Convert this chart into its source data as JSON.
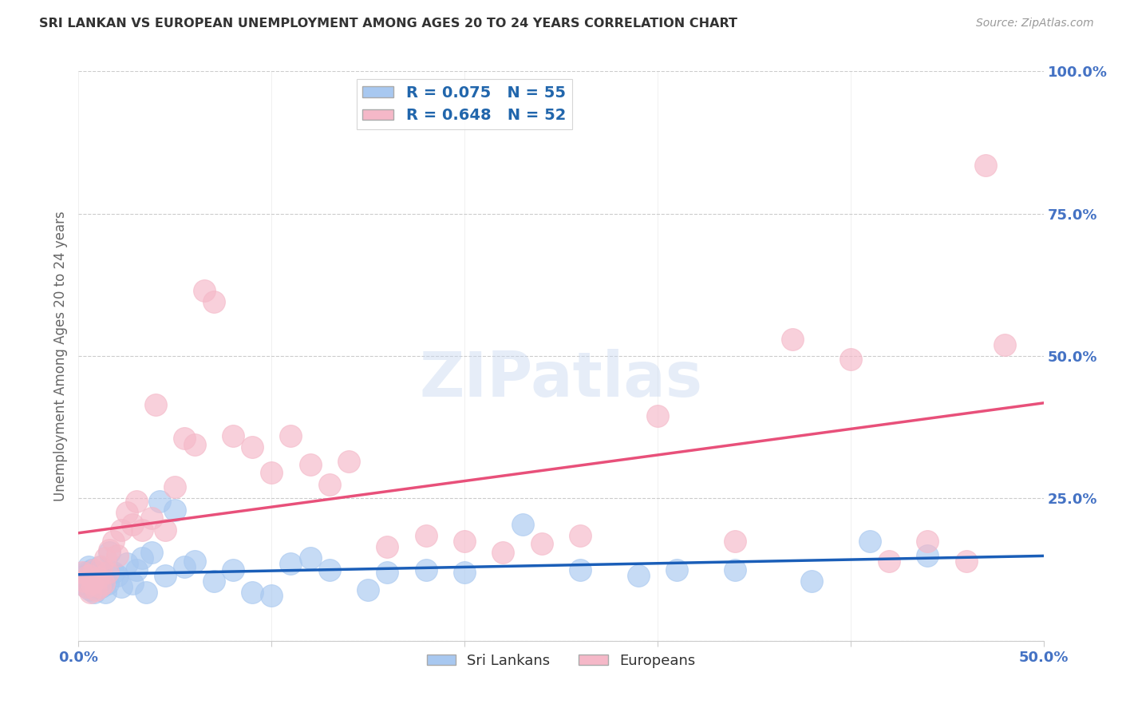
{
  "title": "SRI LANKAN VS EUROPEAN UNEMPLOYMENT AMONG AGES 20 TO 24 YEARS CORRELATION CHART",
  "source": "Source: ZipAtlas.com",
  "ylabel": "Unemployment Among Ages 20 to 24 years",
  "xlim": [
    0.0,
    0.5
  ],
  "ylim": [
    0.0,
    1.0
  ],
  "xticks": [
    0.0,
    0.1,
    0.2,
    0.3,
    0.4,
    0.5
  ],
  "yticks": [
    0.0,
    0.25,
    0.5,
    0.75,
    1.0
  ],
  "xticklabels": [
    "0.0%",
    "",
    "",
    "",
    "",
    "50.0%"
  ],
  "yticklabels": [
    "",
    "25.0%",
    "50.0%",
    "75.0%",
    "100.0%"
  ],
  "sri_lankan_color": "#a8c8f0",
  "european_color": "#f5b8c8",
  "sri_lankan_line_color": "#1a5eb8",
  "european_line_color": "#e8507a",
  "background_color": "#ffffff",
  "grid_color": "#cccccc",
  "title_color": "#333333",
  "tick_label_color": "#4472c4",
  "watermark_text": "ZIPatlas",
  "sri_lankans_x": [
    0.002,
    0.003,
    0.004,
    0.004,
    0.005,
    0.005,
    0.006,
    0.006,
    0.007,
    0.007,
    0.008,
    0.008,
    0.009,
    0.009,
    0.01,
    0.01,
    0.011,
    0.012,
    0.013,
    0.014,
    0.015,
    0.016,
    0.018,
    0.02,
    0.022,
    0.025,
    0.028,
    0.03,
    0.033,
    0.035,
    0.038,
    0.042,
    0.045,
    0.05,
    0.055,
    0.06,
    0.07,
    0.08,
    0.09,
    0.1,
    0.11,
    0.12,
    0.13,
    0.15,
    0.16,
    0.18,
    0.2,
    0.23,
    0.26,
    0.29,
    0.31,
    0.34,
    0.38,
    0.41,
    0.44
  ],
  "sri_lankans_y": [
    0.1,
    0.115,
    0.095,
    0.12,
    0.105,
    0.13,
    0.09,
    0.115,
    0.1,
    0.125,
    0.085,
    0.11,
    0.095,
    0.12,
    0.1,
    0.115,
    0.13,
    0.095,
    0.11,
    0.085,
    0.1,
    0.155,
    0.12,
    0.115,
    0.095,
    0.135,
    0.1,
    0.125,
    0.145,
    0.085,
    0.155,
    0.245,
    0.115,
    0.23,
    0.13,
    0.14,
    0.105,
    0.125,
    0.085,
    0.08,
    0.135,
    0.145,
    0.125,
    0.09,
    0.12,
    0.125,
    0.12,
    0.205,
    0.125,
    0.115,
    0.125,
    0.125,
    0.105,
    0.175,
    0.15
  ],
  "europeans_x": [
    0.002,
    0.003,
    0.004,
    0.005,
    0.006,
    0.007,
    0.008,
    0.009,
    0.01,
    0.011,
    0.012,
    0.013,
    0.014,
    0.015,
    0.016,
    0.018,
    0.02,
    0.022,
    0.025,
    0.028,
    0.03,
    0.033,
    0.038,
    0.04,
    0.045,
    0.05,
    0.055,
    0.06,
    0.065,
    0.07,
    0.08,
    0.09,
    0.1,
    0.11,
    0.12,
    0.13,
    0.14,
    0.16,
    0.18,
    0.2,
    0.22,
    0.24,
    0.26,
    0.3,
    0.34,
    0.37,
    0.4,
    0.42,
    0.44,
    0.46,
    0.47,
    0.48
  ],
  "europeans_y": [
    0.12,
    0.105,
    0.095,
    0.115,
    0.085,
    0.1,
    0.125,
    0.09,
    0.11,
    0.095,
    0.13,
    0.1,
    0.145,
    0.12,
    0.16,
    0.175,
    0.15,
    0.195,
    0.225,
    0.205,
    0.245,
    0.195,
    0.215,
    0.415,
    0.195,
    0.27,
    0.355,
    0.345,
    0.615,
    0.595,
    0.36,
    0.34,
    0.295,
    0.36,
    0.31,
    0.275,
    0.315,
    0.165,
    0.185,
    0.175,
    0.155,
    0.17,
    0.185,
    0.395,
    0.175,
    0.53,
    0.495,
    0.14,
    0.175,
    0.14,
    0.835,
    0.52
  ]
}
